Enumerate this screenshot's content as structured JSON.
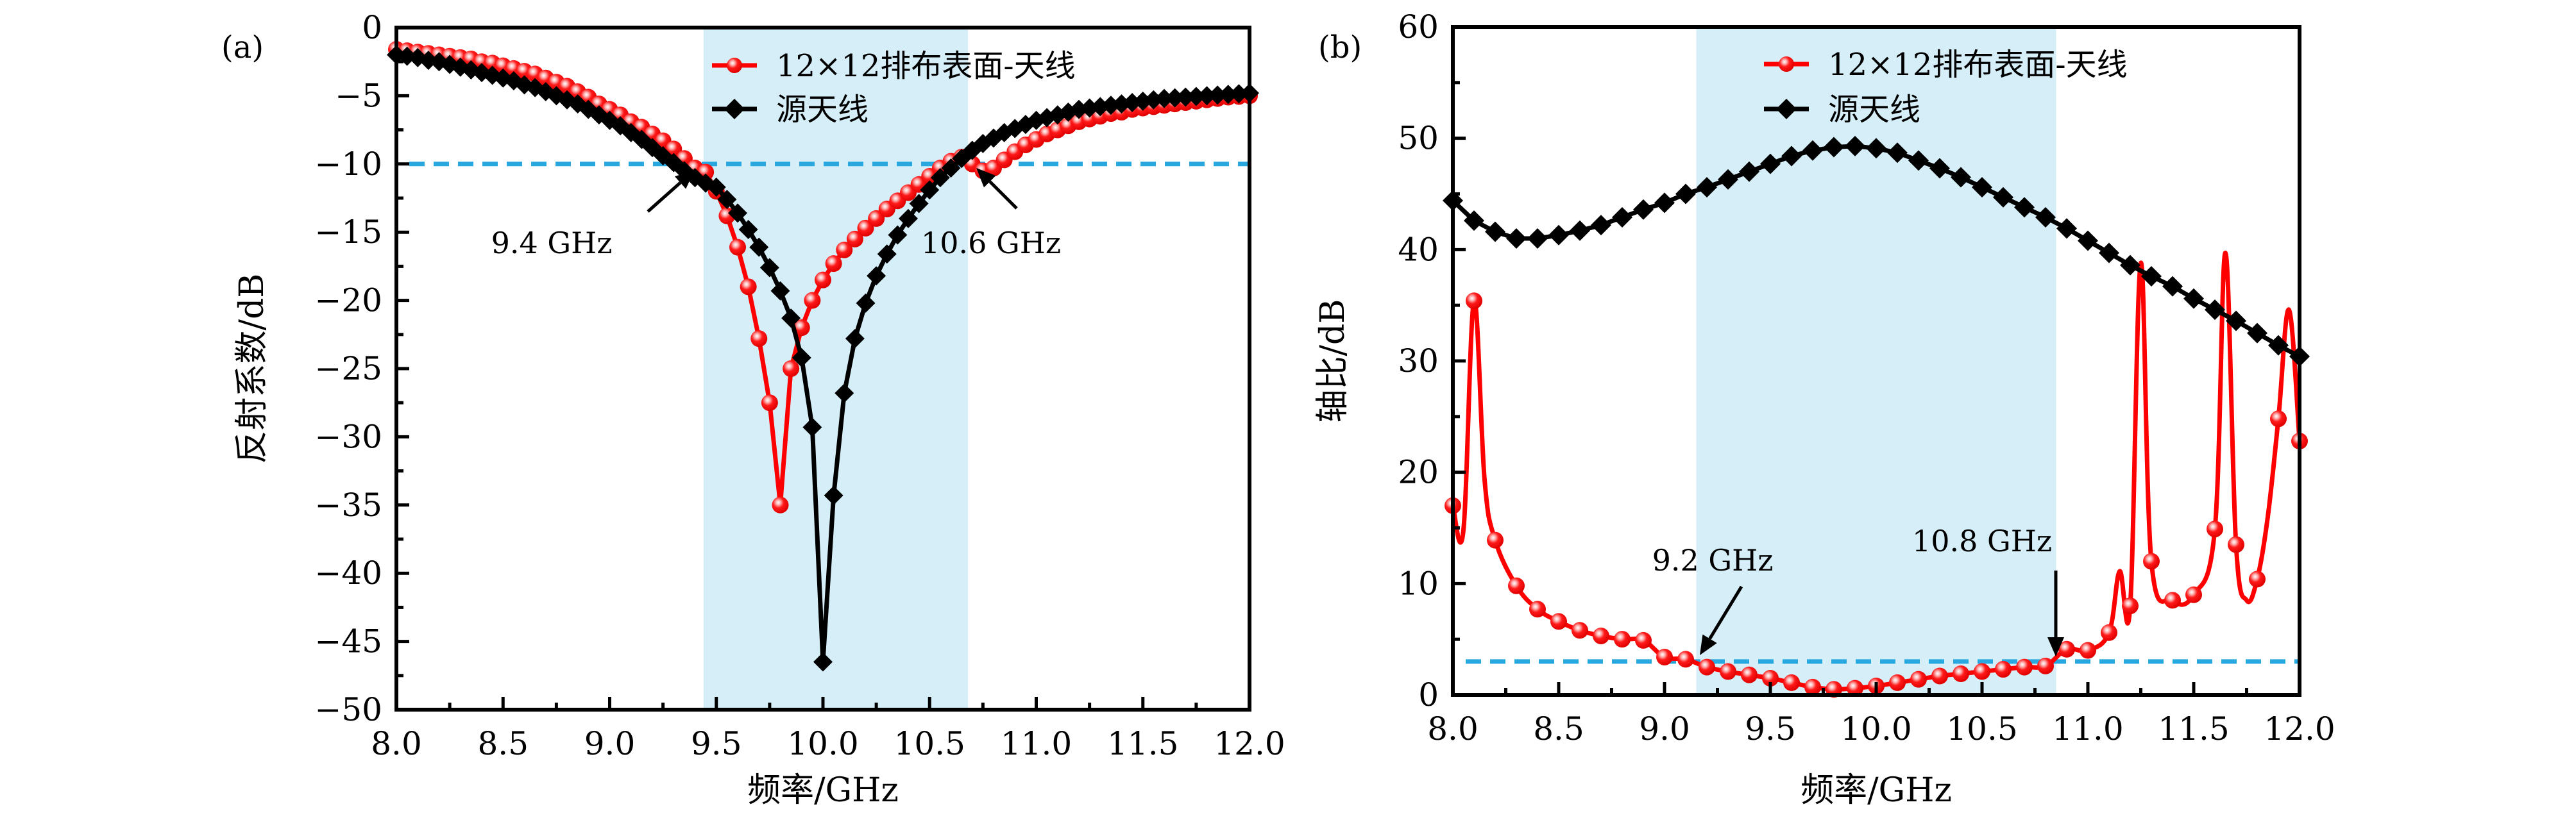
{
  "figure": {
    "colors": {
      "series_array": "#ff0000",
      "series_source": "#000000",
      "threshold_line": "#29a8e0",
      "band_fill": "#d6eef8"
    }
  },
  "chart_data": [
    {
      "type": "line",
      "panel_label": "(a)",
      "title": "",
      "xlabel": "频率/GHz",
      "ylabel": "反射系数/dB",
      "xlim": [
        8.0,
        12.0
      ],
      "ylim": [
        -50,
        0
      ],
      "x_ticks": [
        "8.0",
        "8.5",
        "9.0",
        "9.5",
        "10.0",
        "10.5",
        "11.0",
        "11.5",
        "12.0"
      ],
      "x_tick_values": [
        8.0,
        8.5,
        9.0,
        9.5,
        10.0,
        10.5,
        11.0,
        11.5,
        12.0
      ],
      "y_ticks": [
        "0",
        "−5",
        "−10",
        "−15",
        "−20",
        "−25",
        "−30",
        "−35",
        "−40",
        "−45",
        "−50"
      ],
      "y_tick_values": [
        0,
        -5,
        -10,
        -15,
        -20,
        -25,
        -30,
        -35,
        -40,
        -45,
        -50
      ],
      "grid": false,
      "legend_position": "top-center",
      "shaded_band": [
        9.44,
        10.68
      ],
      "threshold": -10,
      "annotations": [
        {
          "text": "9.4 GHz",
          "x": 9.4,
          "y": -10
        },
        {
          "text": "10.6 GHz",
          "x": 10.6,
          "y": -10
        }
      ],
      "series": [
        {
          "name": "12×12排布表面-天线",
          "marker": "circle",
          "x": [
            8.0,
            8.05,
            8.1,
            8.15,
            8.2,
            8.25,
            8.3,
            8.35,
            8.4,
            8.45,
            8.5,
            8.55,
            8.6,
            8.65,
            8.7,
            8.75,
            8.8,
            8.85,
            8.9,
            8.95,
            9.0,
            9.05,
            9.1,
            9.15,
            9.2,
            9.25,
            9.3,
            9.35,
            9.4,
            9.45,
            9.5,
            9.55,
            9.6,
            9.65,
            9.7,
            9.75,
            9.8,
            9.85,
            9.9,
            9.95,
            10.0,
            10.05,
            10.1,
            10.15,
            10.2,
            10.25,
            10.3,
            10.35,
            10.4,
            10.45,
            10.5,
            10.55,
            10.6,
            10.65,
            10.7,
            10.75,
            10.8,
            10.85,
            10.9,
            10.95,
            11.0,
            11.05,
            11.1,
            11.15,
            11.2,
            11.25,
            11.3,
            11.35,
            11.4,
            11.45,
            11.5,
            11.55,
            11.6,
            11.65,
            11.7,
            11.75,
            11.8,
            11.85,
            11.9,
            11.95,
            12.0
          ],
          "y": [
            -1.6,
            -1.7,
            -1.8,
            -1.9,
            -2.0,
            -2.1,
            -2.2,
            -2.3,
            -2.5,
            -2.6,
            -2.8,
            -3.0,
            -3.2,
            -3.4,
            -3.7,
            -4.0,
            -4.3,
            -4.7,
            -5.1,
            -5.6,
            -6.0,
            -6.4,
            -6.9,
            -7.3,
            -7.8,
            -8.3,
            -8.9,
            -9.6,
            -10.3,
            -10.6,
            -12.0,
            -13.8,
            -16.1,
            -19.0,
            -22.8,
            -27.5,
            -35.0,
            -25.0,
            -22.0,
            -20.0,
            -18.5,
            -17.3,
            -16.3,
            -15.5,
            -14.7,
            -14.0,
            -13.3,
            -12.7,
            -12.1,
            -11.5,
            -10.9,
            -10.3,
            -9.8,
            -9.5,
            -10.0,
            -10.5,
            -10.3,
            -9.7,
            -9.1,
            -8.6,
            -8.2,
            -7.8,
            -7.5,
            -7.2,
            -6.9,
            -6.7,
            -6.5,
            -6.3,
            -6.2,
            -6.0,
            -5.9,
            -5.8,
            -5.7,
            -5.6,
            -5.5,
            -5.4,
            -5.3,
            -5.2,
            -5.1,
            -5.05,
            -5.0
          ]
        },
        {
          "name": "源天线",
          "marker": "diamond",
          "x": [
            8.0,
            8.05,
            8.1,
            8.15,
            8.2,
            8.25,
            8.3,
            8.35,
            8.4,
            8.45,
            8.5,
            8.55,
            8.6,
            8.65,
            8.7,
            8.75,
            8.8,
            8.85,
            8.9,
            8.95,
            9.0,
            9.05,
            9.1,
            9.15,
            9.2,
            9.25,
            9.3,
            9.35,
            9.4,
            9.45,
            9.5,
            9.55,
            9.6,
            9.65,
            9.7,
            9.75,
            9.8,
            9.85,
            9.9,
            9.95,
            10.0,
            10.05,
            10.1,
            10.15,
            10.2,
            10.25,
            10.3,
            10.35,
            10.4,
            10.45,
            10.5,
            10.55,
            10.6,
            10.65,
            10.7,
            10.75,
            10.8,
            10.85,
            10.9,
            10.95,
            11.0,
            11.05,
            11.1,
            11.15,
            11.2,
            11.25,
            11.3,
            11.35,
            11.4,
            11.45,
            11.5,
            11.55,
            11.6,
            11.65,
            11.7,
            11.75,
            11.8,
            11.85,
            11.9,
            11.95,
            12.0
          ],
          "y": [
            -2.0,
            -2.1,
            -2.2,
            -2.4,
            -2.5,
            -2.7,
            -2.9,
            -3.1,
            -3.3,
            -3.5,
            -3.7,
            -3.9,
            -4.2,
            -4.4,
            -4.7,
            -5.0,
            -5.3,
            -5.6,
            -6.0,
            -6.4,
            -6.8,
            -7.2,
            -7.7,
            -8.2,
            -8.8,
            -9.4,
            -9.9,
            -10.5,
            -11.0,
            -11.4,
            -11.7,
            -12.6,
            -13.6,
            -14.8,
            -16.1,
            -17.6,
            -19.3,
            -21.3,
            -24.2,
            -29.3,
            -46.5,
            -34.3,
            -26.8,
            -22.8,
            -20.2,
            -18.2,
            -16.6,
            -15.2,
            -14.0,
            -12.9,
            -11.9,
            -11.0,
            -10.3,
            -9.6,
            -9.0,
            -8.5,
            -8.1,
            -7.7,
            -7.4,
            -7.1,
            -6.8,
            -6.6,
            -6.4,
            -6.2,
            -6.0,
            -5.9,
            -5.8,
            -5.7,
            -5.6,
            -5.5,
            -5.4,
            -5.3,
            -5.2,
            -5.15,
            -5.1,
            -5.05,
            -5.0,
            -4.95,
            -4.9,
            -4.85,
            -4.8
          ]
        }
      ]
    },
    {
      "type": "line",
      "panel_label": "(b)",
      "title": "",
      "xlabel": "频率/GHz",
      "ylabel": "轴比/dB",
      "xlim": [
        8.0,
        12.0
      ],
      "ylim": [
        0,
        60
      ],
      "x_ticks": [
        "8.0",
        "8.5",
        "9.0",
        "9.5",
        "10.0",
        "10.5",
        "11.0",
        "11.5",
        "12.0"
      ],
      "x_tick_values": [
        8.0,
        8.5,
        9.0,
        9.5,
        10.0,
        10.5,
        11.0,
        11.5,
        12.0
      ],
      "y_ticks": [
        "0",
        "10",
        "20",
        "30",
        "40",
        "50",
        "60"
      ],
      "y_tick_values": [
        0,
        10,
        20,
        30,
        40,
        50,
        60
      ],
      "grid": false,
      "legend_position": "top-center",
      "shaded_band": [
        9.15,
        10.85
      ],
      "threshold": 3,
      "annotations": [
        {
          "text": "9.2 GHz",
          "x": 9.15,
          "y": 3
        },
        {
          "text": "10.8 GHz",
          "x": 10.82,
          "y": 3
        }
      ],
      "series": [
        {
          "name": "12×12排布表面-天线",
          "marker": "circle",
          "x": [
            8.0,
            8.05,
            8.1,
            8.15,
            8.2,
            8.3,
            8.4,
            8.5,
            8.6,
            8.7,
            8.8,
            8.9,
            9.0,
            9.1,
            9.2,
            9.3,
            9.4,
            9.5,
            9.6,
            9.7,
            9.8,
            9.9,
            10.0,
            10.1,
            10.2,
            10.3,
            10.4,
            10.5,
            10.6,
            10.7,
            10.8,
            10.9,
            11.0,
            11.1,
            11.15,
            11.2,
            11.25,
            11.3,
            11.4,
            11.5,
            11.6,
            11.65,
            11.7,
            11.75,
            11.8,
            11.85,
            11.9,
            11.95,
            12.0
          ],
          "y": [
            17.0,
            14.8,
            35.4,
            19.3,
            13.9,
            9.8,
            7.7,
            6.6,
            5.8,
            5.3,
            5.0,
            4.9,
            3.4,
            3.2,
            2.5,
            2.1,
            1.8,
            1.5,
            1.1,
            0.7,
            0.5,
            0.6,
            0.8,
            1.1,
            1.4,
            1.7,
            1.9,
            2.1,
            2.3,
            2.5,
            2.6,
            4.1,
            4.0,
            5.6,
            11.1,
            8.0,
            38.8,
            12.0,
            8.5,
            9.0,
            14.9,
            39.7,
            13.5,
            8.5,
            10.4,
            16.0,
            24.8,
            34.6,
            22.8
          ],
          "marker_x": [
            8.0,
            8.1,
            8.2,
            8.3,
            8.4,
            8.5,
            8.6,
            8.7,
            8.8,
            8.9,
            9.0,
            9.1,
            9.2,
            9.3,
            9.4,
            9.5,
            9.6,
            9.7,
            9.8,
            9.9,
            10.0,
            10.1,
            10.2,
            10.3,
            10.4,
            10.5,
            10.6,
            10.7,
            10.8,
            10.9,
            11.0,
            11.1,
            11.2,
            11.3,
            11.4,
            11.5,
            11.6,
            11.7,
            11.8,
            11.9,
            12.0
          ]
        },
        {
          "name": "源天线",
          "marker": "diamond",
          "x": [
            8.0,
            8.1,
            8.2,
            8.3,
            8.4,
            8.5,
            8.6,
            8.7,
            8.8,
            8.9,
            9.0,
            9.1,
            9.2,
            9.3,
            9.4,
            9.5,
            9.6,
            9.7,
            9.8,
            9.9,
            10.0,
            10.1,
            10.2,
            10.3,
            10.4,
            10.5,
            10.6,
            10.7,
            10.8,
            10.9,
            11.0,
            11.1,
            11.2,
            11.3,
            11.4,
            11.5,
            11.6,
            11.7,
            11.8,
            11.9,
            12.0
          ],
          "y": [
            44.4,
            42.6,
            41.6,
            41.0,
            41.0,
            41.3,
            41.7,
            42.2,
            42.9,
            43.6,
            44.2,
            45.0,
            45.6,
            46.3,
            47.0,
            47.7,
            48.4,
            48.9,
            49.2,
            49.3,
            49.1,
            48.7,
            48.0,
            47.3,
            46.5,
            45.6,
            44.7,
            43.8,
            42.9,
            41.9,
            40.8,
            39.7,
            38.6,
            37.6,
            36.7,
            35.6,
            34.6,
            33.6,
            32.5,
            31.4,
            30.4
          ]
        }
      ]
    }
  ]
}
